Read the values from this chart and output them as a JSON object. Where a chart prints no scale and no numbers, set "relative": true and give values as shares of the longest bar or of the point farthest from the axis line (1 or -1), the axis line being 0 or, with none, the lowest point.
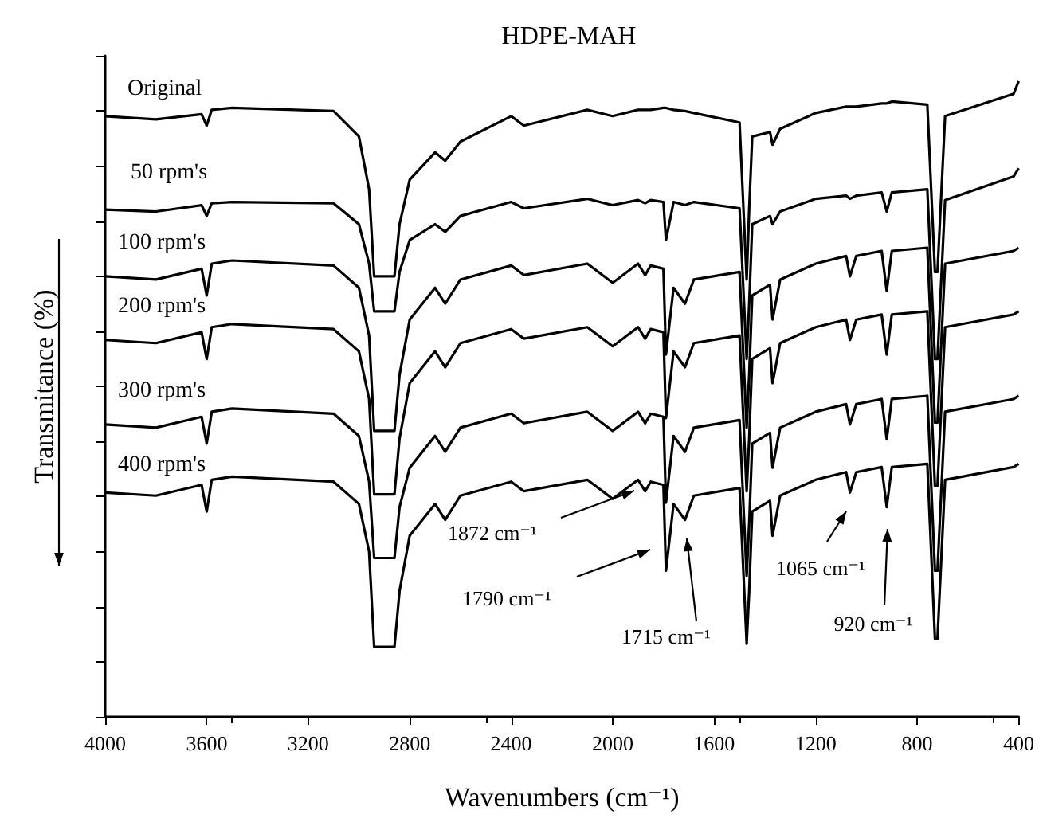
{
  "chart_data": {
    "type": "line",
    "title": "HDPE-MAH",
    "xlabel": "Wavenumbers (cm⁻¹)",
    "ylabel": "Transmitance (%)",
    "relative": true,
    "xlim": [
      4000,
      400
    ],
    "xticks": [
      4000,
      3600,
      3200,
      2800,
      2400,
      2000,
      1600,
      1200,
      800,
      400
    ],
    "x": [
      4000,
      3800,
      3620,
      3600,
      3580,
      3500,
      3100,
      3000,
      2960,
      2940,
      2860,
      2840,
      2800,
      2700,
      2660,
      2600,
      2400,
      2350,
      2100,
      2000,
      1900,
      1872,
      1850,
      1800,
      1790,
      1760,
      1715,
      1680,
      1500,
      1472,
      1462,
      1450,
      1380,
      1370,
      1340,
      1200,
      1080,
      1065,
      1040,
      940,
      920,
      900,
      760,
      730,
      720,
      690,
      420,
      400
    ],
    "series": [
      {
        "name": "Original",
        "color": "#000000",
        "values": [
          0.945,
          0.94,
          0.948,
          0.93,
          0.955,
          0.958,
          0.953,
          0.913,
          0.83,
          0.693,
          0.693,
          0.775,
          0.845,
          0.888,
          0.875,
          0.905,
          0.945,
          0.93,
          0.955,
          0.945,
          0.955,
          0.955,
          0.955,
          0.958,
          0.958,
          0.955,
          0.953,
          0.95,
          0.935,
          0.688,
          0.8,
          0.913,
          0.92,
          0.9,
          0.925,
          0.95,
          0.96,
          0.96,
          0.96,
          0.965,
          0.965,
          0.968,
          0.963,
          0.7,
          0.7,
          0.945,
          0.98,
          1
        ]
      },
      {
        "name": "50 rpm's",
        "color": "#000000",
        "values": [
          0.798,
          0.795,
          0.805,
          0.788,
          0.808,
          0.81,
          0.808,
          0.775,
          0.713,
          0.638,
          0.638,
          0.7,
          0.75,
          0.775,
          0.763,
          0.788,
          0.81,
          0.8,
          0.815,
          0.805,
          0.813,
          0.808,
          0.813,
          0.81,
          0.75,
          0.81,
          0.805,
          0.81,
          0.8,
          0.563,
          0.65,
          0.775,
          0.788,
          0.775,
          0.795,
          0.815,
          0.82,
          0.815,
          0.82,
          0.825,
          0.795,
          0.825,
          0.83,
          0.563,
          0.563,
          0.813,
          0.85,
          0.863
        ]
      },
      {
        "name": "100 rpm's",
        "color": "#000000",
        "values": [
          0.693,
          0.688,
          0.705,
          0.663,
          0.713,
          0.718,
          0.71,
          0.675,
          0.6,
          0.45,
          0.45,
          0.538,
          0.625,
          0.675,
          0.65,
          0.688,
          0.71,
          0.695,
          0.713,
          0.683,
          0.713,
          0.695,
          0.71,
          0.705,
          0.57,
          0.675,
          0.65,
          0.688,
          0.7,
          0.455,
          0.538,
          0.663,
          0.68,
          0.625,
          0.688,
          0.713,
          0.725,
          0.693,
          0.725,
          0.733,
          0.67,
          0.733,
          0.738,
          0.463,
          0.463,
          0.713,
          0.733,
          0.738
        ]
      },
      {
        "name": "200 rpm's",
        "color": "#000000",
        "values": [
          0.593,
          0.588,
          0.605,
          0.563,
          0.613,
          0.618,
          0.61,
          0.575,
          0.5,
          0.35,
          0.35,
          0.438,
          0.525,
          0.575,
          0.55,
          0.588,
          0.61,
          0.595,
          0.613,
          0.583,
          0.613,
          0.595,
          0.61,
          0.605,
          0.47,
          0.575,
          0.55,
          0.588,
          0.6,
          0.355,
          0.438,
          0.563,
          0.58,
          0.525,
          0.588,
          0.613,
          0.625,
          0.593,
          0.625,
          0.633,
          0.57,
          0.633,
          0.638,
          0.363,
          0.363,
          0.613,
          0.633,
          0.638
        ]
      },
      {
        "name": "300 rpm's",
        "color": "#000000",
        "values": [
          0.46,
          0.455,
          0.472,
          0.43,
          0.48,
          0.485,
          0.477,
          0.442,
          0.37,
          0.25,
          0.25,
          0.33,
          0.392,
          0.442,
          0.417,
          0.455,
          0.477,
          0.462,
          0.48,
          0.45,
          0.48,
          0.462,
          0.477,
          0.472,
          0.337,
          0.442,
          0.417,
          0.455,
          0.467,
          0.222,
          0.305,
          0.43,
          0.447,
          0.392,
          0.455,
          0.48,
          0.492,
          0.46,
          0.492,
          0.5,
          0.437,
          0.5,
          0.505,
          0.23,
          0.23,
          0.48,
          0.5,
          0.505
        ]
      },
      {
        "name": "400 rpm's",
        "color": "#000000",
        "values": [
          0.353,
          0.348,
          0.365,
          0.323,
          0.373,
          0.378,
          0.37,
          0.335,
          0.26,
          0.11,
          0.11,
          0.198,
          0.285,
          0.335,
          0.31,
          0.348,
          0.37,
          0.355,
          0.373,
          0.343,
          0.373,
          0.355,
          0.37,
          0.365,
          0.23,
          0.335,
          0.31,
          0.348,
          0.36,
          0.115,
          0.198,
          0.323,
          0.34,
          0.285,
          0.348,
          0.373,
          0.385,
          0.353,
          0.385,
          0.393,
          0.33,
          0.393,
          0.398,
          0.123,
          0.123,
          0.373,
          0.393,
          0.398
        ]
      }
    ],
    "annotations": [
      "1872 cm⁻¹",
      "1790 cm⁻¹",
      "1715 cm⁻¹",
      "1065 cm⁻¹",
      "920 cm⁻¹"
    ],
    "legend": "left",
    "grid": false
  }
}
